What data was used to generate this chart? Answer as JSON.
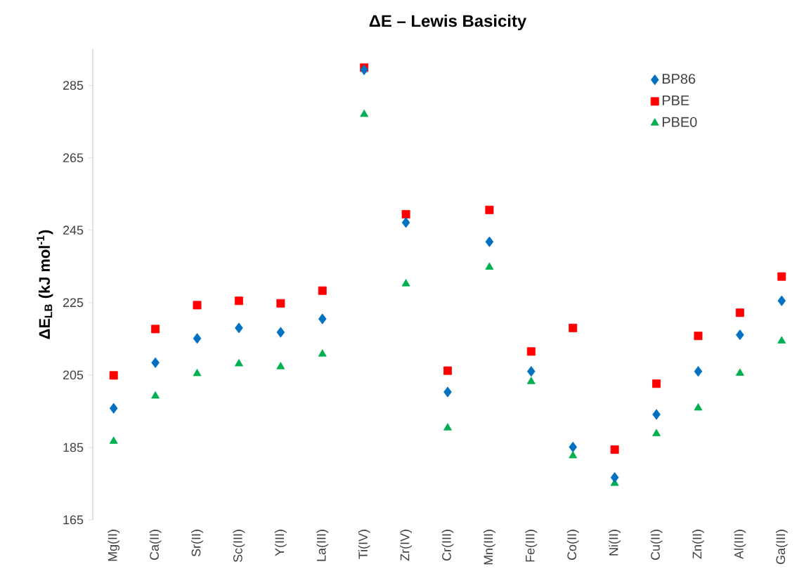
{
  "chart_data": {
    "type": "scatter",
    "title": "ΔE – Lewis Basicity",
    "ylabel": "ΔE$_{LB}$ (kJ mol$^{-1}$)",
    "categories": [
      "Mg(II)",
      "Ca(II)",
      "Sr(II)",
      "Sc(III)",
      "Y(III)",
      "La(III)",
      "Ti(IV)",
      "Zr(IV)",
      "Cr(III)",
      "Mn(III)",
      "Fe(III)",
      "Co(II)",
      "Ni(II)",
      "Cu(II)",
      "Zn(II)",
      "Al(III)",
      "Ga(III)"
    ],
    "series": [
      {
        "name": "BP86",
        "color": "#0070c0",
        "marker": "diamond",
        "values": [
          195.8,
          208.4,
          215.1,
          218.0,
          216.8,
          220.5,
          289.3,
          247.1,
          200.3,
          241.8,
          206.0,
          185.1,
          176.7,
          194.1,
          206.0,
          216.1,
          225.5
        ]
      },
      {
        "name": "PBE",
        "color": "#ff0000",
        "marker": "square",
        "values": [
          204.9,
          217.7,
          224.3,
          225.5,
          224.8,
          228.3,
          289.9,
          249.4,
          206.2,
          250.6,
          211.5,
          218.0,
          184.4,
          202.6,
          215.8,
          222.2,
          232.2
        ]
      },
      {
        "name": "PBE0",
        "color": "#00b050",
        "marker": "triangle",
        "values": [
          186.7,
          199.2,
          205.4,
          208.1,
          207.3,
          210.8,
          277.0,
          230.2,
          190.4,
          234.8,
          203.2,
          182.7,
          175.1,
          188.8,
          195.9,
          205.5,
          214.4
        ]
      }
    ],
    "ylim": [
      165,
      295
    ],
    "yticks": [
      165,
      185,
      205,
      225,
      245,
      265,
      285
    ],
    "grid": false,
    "legend": "top right"
  }
}
